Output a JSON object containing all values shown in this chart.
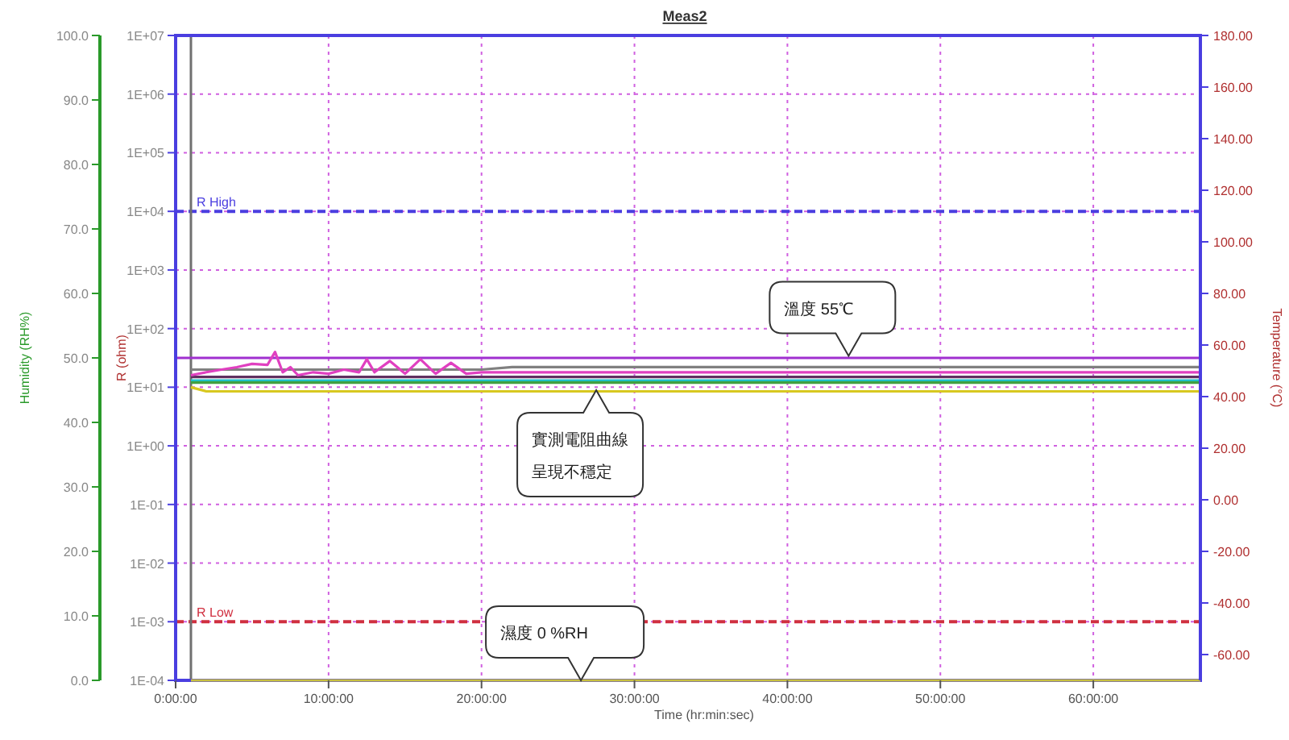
{
  "chart_data": {
    "type": "line",
    "title": "Meas2",
    "xlabel": "Time (hr:min:sec)",
    "ylabel": "Humidity (RH%)",
    "y2label": "R (ohm)",
    "y3label": "Temperature (°C)",
    "xlim": [
      0,
      67
    ],
    "xticks": [
      {
        "value": 0,
        "label": "0:00:00"
      },
      {
        "value": 10,
        "label": "10:00:00"
      },
      {
        "value": 20,
        "label": "20:00:00"
      },
      {
        "value": 30,
        "label": "30:00:00"
      },
      {
        "value": 40,
        "label": "40:00:00"
      },
      {
        "value": 50,
        "label": "50:00:00"
      },
      {
        "value": 60,
        "label": "60:00:00"
      }
    ],
    "ylim": [
      0,
      100
    ],
    "yticks": [
      {
        "value": 0,
        "label": "0.0"
      },
      {
        "value": 10,
        "label": "10.0"
      },
      {
        "value": 20,
        "label": "20.0"
      },
      {
        "value": 30,
        "label": "30.0"
      },
      {
        "value": 40,
        "label": "40.0"
      },
      {
        "value": 50,
        "label": "50.0"
      },
      {
        "value": 60,
        "label": "60.0"
      },
      {
        "value": 70,
        "label": "70.0"
      },
      {
        "value": 80,
        "label": "80.0"
      },
      {
        "value": 90,
        "label": "90.0"
      },
      {
        "value": 100,
        "label": "100.0"
      }
    ],
    "y2lim": [
      0.0001,
      10000000
    ],
    "y2ticks": [
      {
        "value": 0.0001,
        "label": "1E-04"
      },
      {
        "value": 0.001,
        "label": "1E-03"
      },
      {
        "value": 0.01,
        "label": "1E-02"
      },
      {
        "value": 0.1,
        "label": "1E-01"
      },
      {
        "value": 1,
        "label": "1E+00"
      },
      {
        "value": 10,
        "label": "1E+01"
      },
      {
        "value": 100,
        "label": "1E+02"
      },
      {
        "value": 1000,
        "label": "1E+03"
      },
      {
        "value": 10000,
        "label": "1E+04"
      },
      {
        "value": 100000,
        "label": "1E+05"
      },
      {
        "value": 1000000,
        "label": "1E+06"
      },
      {
        "value": 10000000,
        "label": "1E+07"
      }
    ],
    "y3lim": [
      -70,
      180
    ],
    "y3ticks": [
      {
        "value": -60,
        "label": "-60.00"
      },
      {
        "value": -40,
        "label": "-40.00"
      },
      {
        "value": -20,
        "label": "-20.00"
      },
      {
        "value": 0,
        "label": "0.00"
      },
      {
        "value": 20,
        "label": "20.00"
      },
      {
        "value": 40,
        "label": "40.00"
      },
      {
        "value": 60,
        "label": "60.00"
      },
      {
        "value": 80,
        "label": "80.00"
      },
      {
        "value": 100,
        "label": "100.00"
      },
      {
        "value": 120,
        "label": "120.00"
      },
      {
        "value": 140,
        "label": "140.00"
      },
      {
        "value": 160,
        "label": "160.00"
      },
      {
        "value": 180,
        "label": "180.00"
      }
    ],
    "log": "y2",
    "grid": true,
    "ref_lines": [
      {
        "axis": "y2",
        "value": 10000,
        "label": "R High",
        "color": "#4a3ee0",
        "line_style": "dashed"
      },
      {
        "axis": "y2",
        "value": 0.001,
        "label": "R Low",
        "color": "#d03040",
        "line_style": "dashed"
      },
      {
        "axis": "x",
        "value": 1,
        "color": "#707070"
      }
    ],
    "series": [
      {
        "axis": "y3",
        "color": "#a030d0",
        "x": [
          0,
          67
        ],
        "values": [
          55,
          55
        ]
      },
      {
        "axis": "y",
        "color": "#c8c040",
        "x": [
          1,
          67
        ],
        "values": [
          0,
          0
        ]
      },
      {
        "axis": "y2",
        "color": "#808080",
        "x": [
          1,
          10,
          20,
          22,
          30,
          40,
          50,
          60,
          67
        ],
        "values": [
          20,
          20,
          20,
          22,
          22,
          22,
          22,
          22,
          22
        ]
      },
      {
        "axis": "y2",
        "color": "#603060",
        "x": [
          1,
          10,
          20,
          30,
          40,
          50,
          60,
          67
        ],
        "values": [
          15,
          15,
          15,
          15,
          15,
          15,
          15,
          15
        ]
      },
      {
        "axis": "y2",
        "color": "#20c0c8",
        "x": [
          1,
          10,
          20,
          30,
          40,
          50,
          60,
          67
        ],
        "values": [
          13,
          13,
          13,
          13,
          13,
          13,
          13,
          13
        ]
      },
      {
        "axis": "y2",
        "color": "#40a040",
        "x": [
          1,
          10,
          20,
          30,
          40,
          50,
          60,
          67
        ],
        "values": [
          12,
          12,
          12,
          12,
          12,
          12,
          12,
          12
        ]
      },
      {
        "axis": "y2",
        "color": "#d8c820",
        "x": [
          1,
          2,
          10,
          20,
          30,
          40,
          50,
          60,
          67
        ],
        "values": [
          10,
          8.5,
          8.5,
          8.5,
          8.5,
          8.5,
          8.5,
          8.5,
          8.5
        ]
      },
      {
        "axis": "y2",
        "color": "#e040c0",
        "x": [
          1,
          2,
          3,
          4,
          5,
          6,
          6.5,
          7,
          7.5,
          8,
          9,
          10,
          11,
          12,
          12.5,
          13,
          14,
          15,
          16,
          17,
          18,
          19,
          20,
          22,
          25,
          30,
          40,
          50,
          60,
          67
        ],
        "values": [
          16,
          18,
          20,
          22,
          25,
          24,
          40,
          18,
          22,
          16,
          18,
          17,
          20,
          18,
          30,
          18,
          28,
          17,
          30,
          17,
          26,
          17,
          18,
          18,
          18,
          18,
          18,
          18,
          18,
          18
        ]
      }
    ],
    "annotations": [
      {
        "text": "溫度 55℃",
        "x": 44,
        "y": 50.3
      },
      {
        "text": "實測電阻曲線呈現不穩定",
        "x": 27.5,
        "y": 45
      },
      {
        "text": "濕度 0 %RH",
        "x": 26.5,
        "y": 0
      }
    ]
  }
}
